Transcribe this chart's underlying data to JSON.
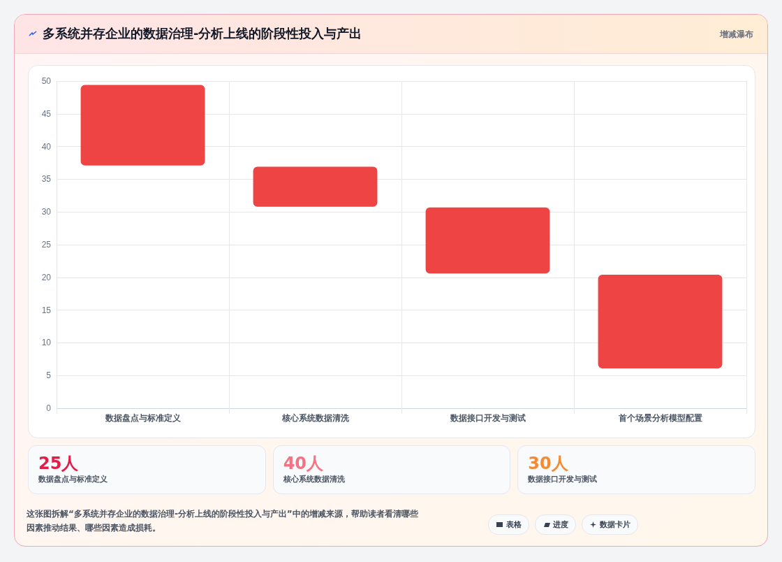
{
  "chart_data": {
    "type": "bar",
    "title": "多系统并存企业的数据治理-分析上线的阶段性投入与产出",
    "subtitle": "增减瀑布",
    "categories": [
      "数据盘点与标准定义",
      "核心系统数据清洗",
      "数据接口开发与测试",
      "首个场景分析模型配置"
    ],
    "base": [
      37.1,
      30.8,
      20.6,
      6.1
    ],
    "values": [
      12.3,
      6.1,
      10.1,
      14.3
    ],
    "color": "#ef4444",
    "ylim": [
      0,
      50
    ],
    "yticks": [
      0,
      5,
      10,
      15,
      20,
      25,
      30,
      35,
      40,
      45,
      50
    ],
    "grid": true,
    "annotations": [
      "25人",
      "数据盘点与标准定义",
      "40人",
      "核心系统数据清洗",
      "30人",
      "数据接口开发与测试",
      "这张图拆解“多系统并存企业的数据治理-分析上线的阶段性投入与产出”中的增减来源，帮助读者看清哪些因素推动结果、哪些因素造成损耗。",
      "表格",
      "进度",
      "数据卡片"
    ]
  }
}
